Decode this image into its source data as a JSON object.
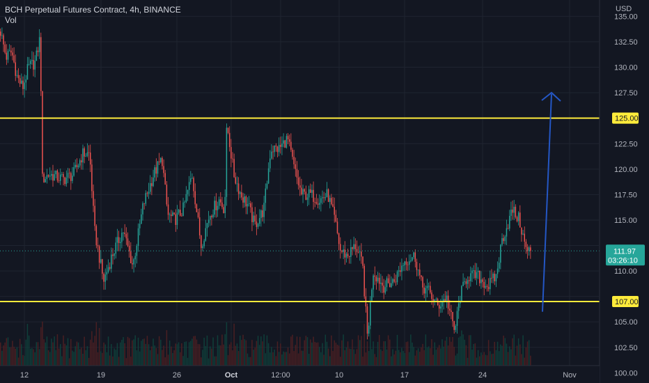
{
  "header": {
    "title": "BCH Perpetual Futures Contract, 4h, BINANCE",
    "indicator": "Vol"
  },
  "colors": {
    "background": "#131722",
    "grid": "#1f2430",
    "axis_text": "#b2b5be",
    "up": "#26a69a",
    "down": "#ef5350",
    "volume_up": "#0f3f3a",
    "volume_down": "#4a1f22",
    "level_line": "#ffeb3b",
    "arrow": "#2457c5",
    "price_line": "#26a69a"
  },
  "chart_data": {
    "type": "candlestick",
    "currency_label": "USD",
    "y_ticks": [
      100,
      102.5,
      105,
      107.5,
      110,
      112.5,
      115,
      117.5,
      120,
      122.5,
      125,
      127.5,
      130,
      132.5,
      135
    ],
    "ylim": [
      99.0,
      136.6
    ],
    "x_ticks": [
      "12",
      "19",
      "26",
      "Oct",
      "12:00",
      "10",
      "17",
      "24",
      "Nov"
    ],
    "price_levels": [
      {
        "label": "125.00",
        "value": 125.0
      },
      {
        "label": "107.00",
        "value": 107.0
      }
    ],
    "current_price": {
      "label": "111.97",
      "value": 111.97,
      "countdown": "03:26:10"
    },
    "arrow_annotation": {
      "from": 106.0,
      "to": 127.5
    },
    "key_points": [
      [
        0,
        133.5
      ],
      [
        8,
        131.0
      ],
      [
        16,
        131.5
      ],
      [
        24,
        129.0
      ],
      [
        32,
        128.0
      ],
      [
        40,
        130.0
      ],
      [
        50,
        130.5
      ],
      [
        57,
        133.0
      ],
      [
        60,
        119.0
      ],
      [
        70,
        119.5
      ],
      [
        90,
        119.0
      ],
      [
        105,
        119.5
      ],
      [
        118,
        121.5
      ],
      [
        128,
        121.5
      ],
      [
        135,
        114.0
      ],
      [
        148,
        109.0
      ],
      [
        160,
        111.5
      ],
      [
        176,
        114.0
      ],
      [
        190,
        110.5
      ],
      [
        205,
        116.5
      ],
      [
        220,
        119.5
      ],
      [
        232,
        121.0
      ],
      [
        240,
        115.5
      ],
      [
        250,
        115.0
      ],
      [
        262,
        116.0
      ],
      [
        275,
        119.5
      ],
      [
        288,
        112.5
      ],
      [
        300,
        115.5
      ],
      [
        314,
        117.0
      ],
      [
        322,
        116.0
      ],
      [
        325,
        124.5
      ],
      [
        335,
        119.5
      ],
      [
        345,
        117.5
      ],
      [
        355,
        116.5
      ],
      [
        365,
        114.5
      ],
      [
        378,
        116.0
      ],
      [
        388,
        122.0
      ],
      [
        400,
        122.0
      ],
      [
        412,
        123.0
      ],
      [
        422,
        120.0
      ],
      [
        432,
        117.5
      ],
      [
        445,
        117.5
      ],
      [
        458,
        117.0
      ],
      [
        470,
        117.5
      ],
      [
        480,
        115.0
      ],
      [
        488,
        112.0
      ],
      [
        498,
        111.5
      ],
      [
        510,
        112.5
      ],
      [
        520,
        110.5
      ],
      [
        527,
        103.5
      ],
      [
        535,
        110.0
      ],
      [
        550,
        108.5
      ],
      [
        565,
        109.0
      ],
      [
        580,
        111.0
      ],
      [
        595,
        111.5
      ],
      [
        605,
        108.5
      ],
      [
        615,
        108.0
      ],
      [
        628,
        106.5
      ],
      [
        640,
        107.5
      ],
      [
        652,
        104.0
      ],
      [
        660,
        107.5
      ],
      [
        670,
        109.5
      ],
      [
        685,
        109.5
      ],
      [
        700,
        108.5
      ],
      [
        712,
        109.5
      ],
      [
        720,
        113.0
      ],
      [
        728,
        114.5
      ],
      [
        735,
        116.0
      ],
      [
        745,
        115.0
      ],
      [
        755,
        112.0
      ],
      [
        762,
        111.97
      ]
    ]
  }
}
